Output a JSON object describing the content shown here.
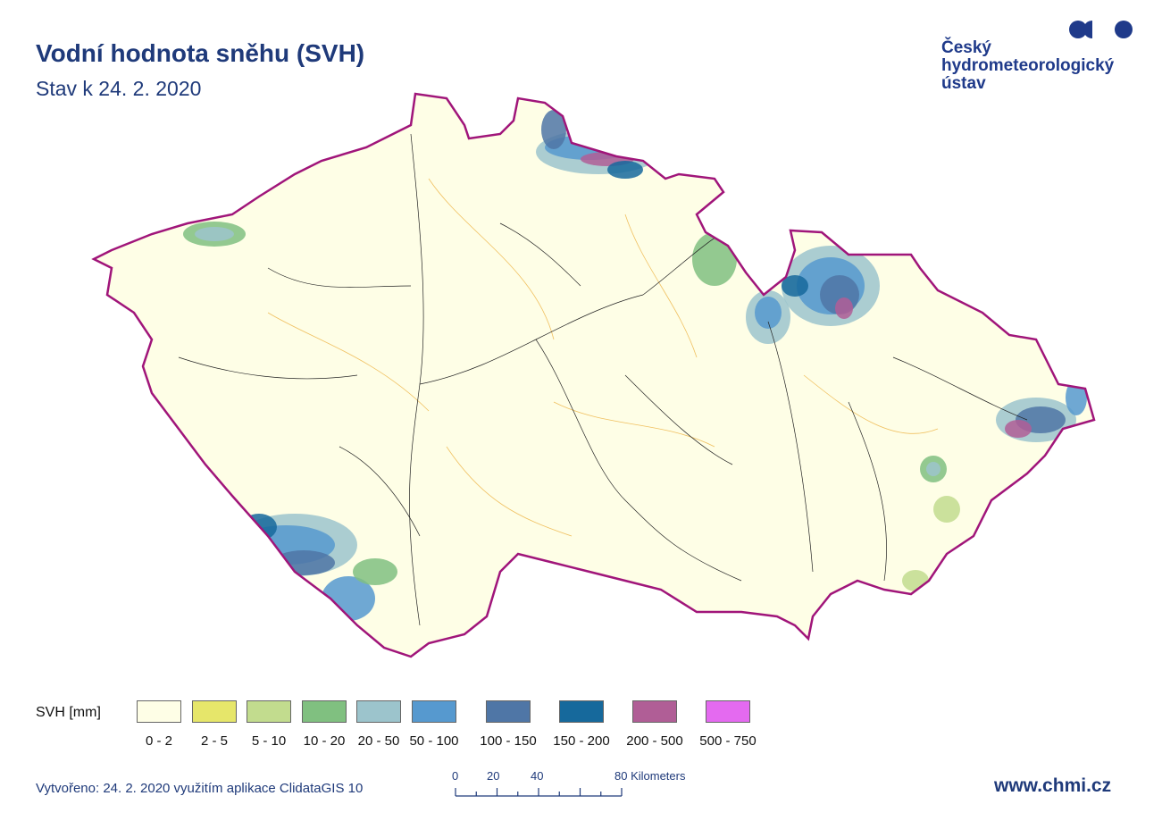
{
  "header": {
    "title": "Vodní hodnota sněhu (SVH)",
    "subtitle": "Stav k 24. 2. 2020"
  },
  "logo": {
    "line1": "Český",
    "line2": "hydrometeorologický",
    "line3": "ústav",
    "color": "#1f3a8a"
  },
  "map": {
    "border_color": "#a0157a",
    "background_color": "#fefee6",
    "river_color": "#222222",
    "basin_color": "#f0c060"
  },
  "legend": {
    "label": "SVH [mm]",
    "classes": [
      {
        "range": "0 - 2",
        "color": "#fefee6"
      },
      {
        "range": "2 - 5",
        "color": "#e6e66a"
      },
      {
        "range": "5 - 10",
        "color": "#c2dc8e"
      },
      {
        "range": "10 - 20",
        "color": "#80c080"
      },
      {
        "range": "20 - 50",
        "color": "#9cc4cc"
      },
      {
        "range": "50 - 100",
        "color": "#5699cf"
      },
      {
        "range": "100 - 150",
        "color": "#4f76a6"
      },
      {
        "range": "150 - 200",
        "color": "#16699c"
      },
      {
        "range": "200 - 500",
        "color": "#b05e96"
      },
      {
        "range": "500 - 750",
        "color": "#e46af0"
      }
    ]
  },
  "scale": {
    "ticks": [
      "0",
      "20",
      "40",
      "80 Kilometers"
    ]
  },
  "footer": {
    "created": "Vytvořeno: 24. 2. 2020 využitím aplikace ClidataGIS 10",
    "website": "www.chmi.cz"
  }
}
